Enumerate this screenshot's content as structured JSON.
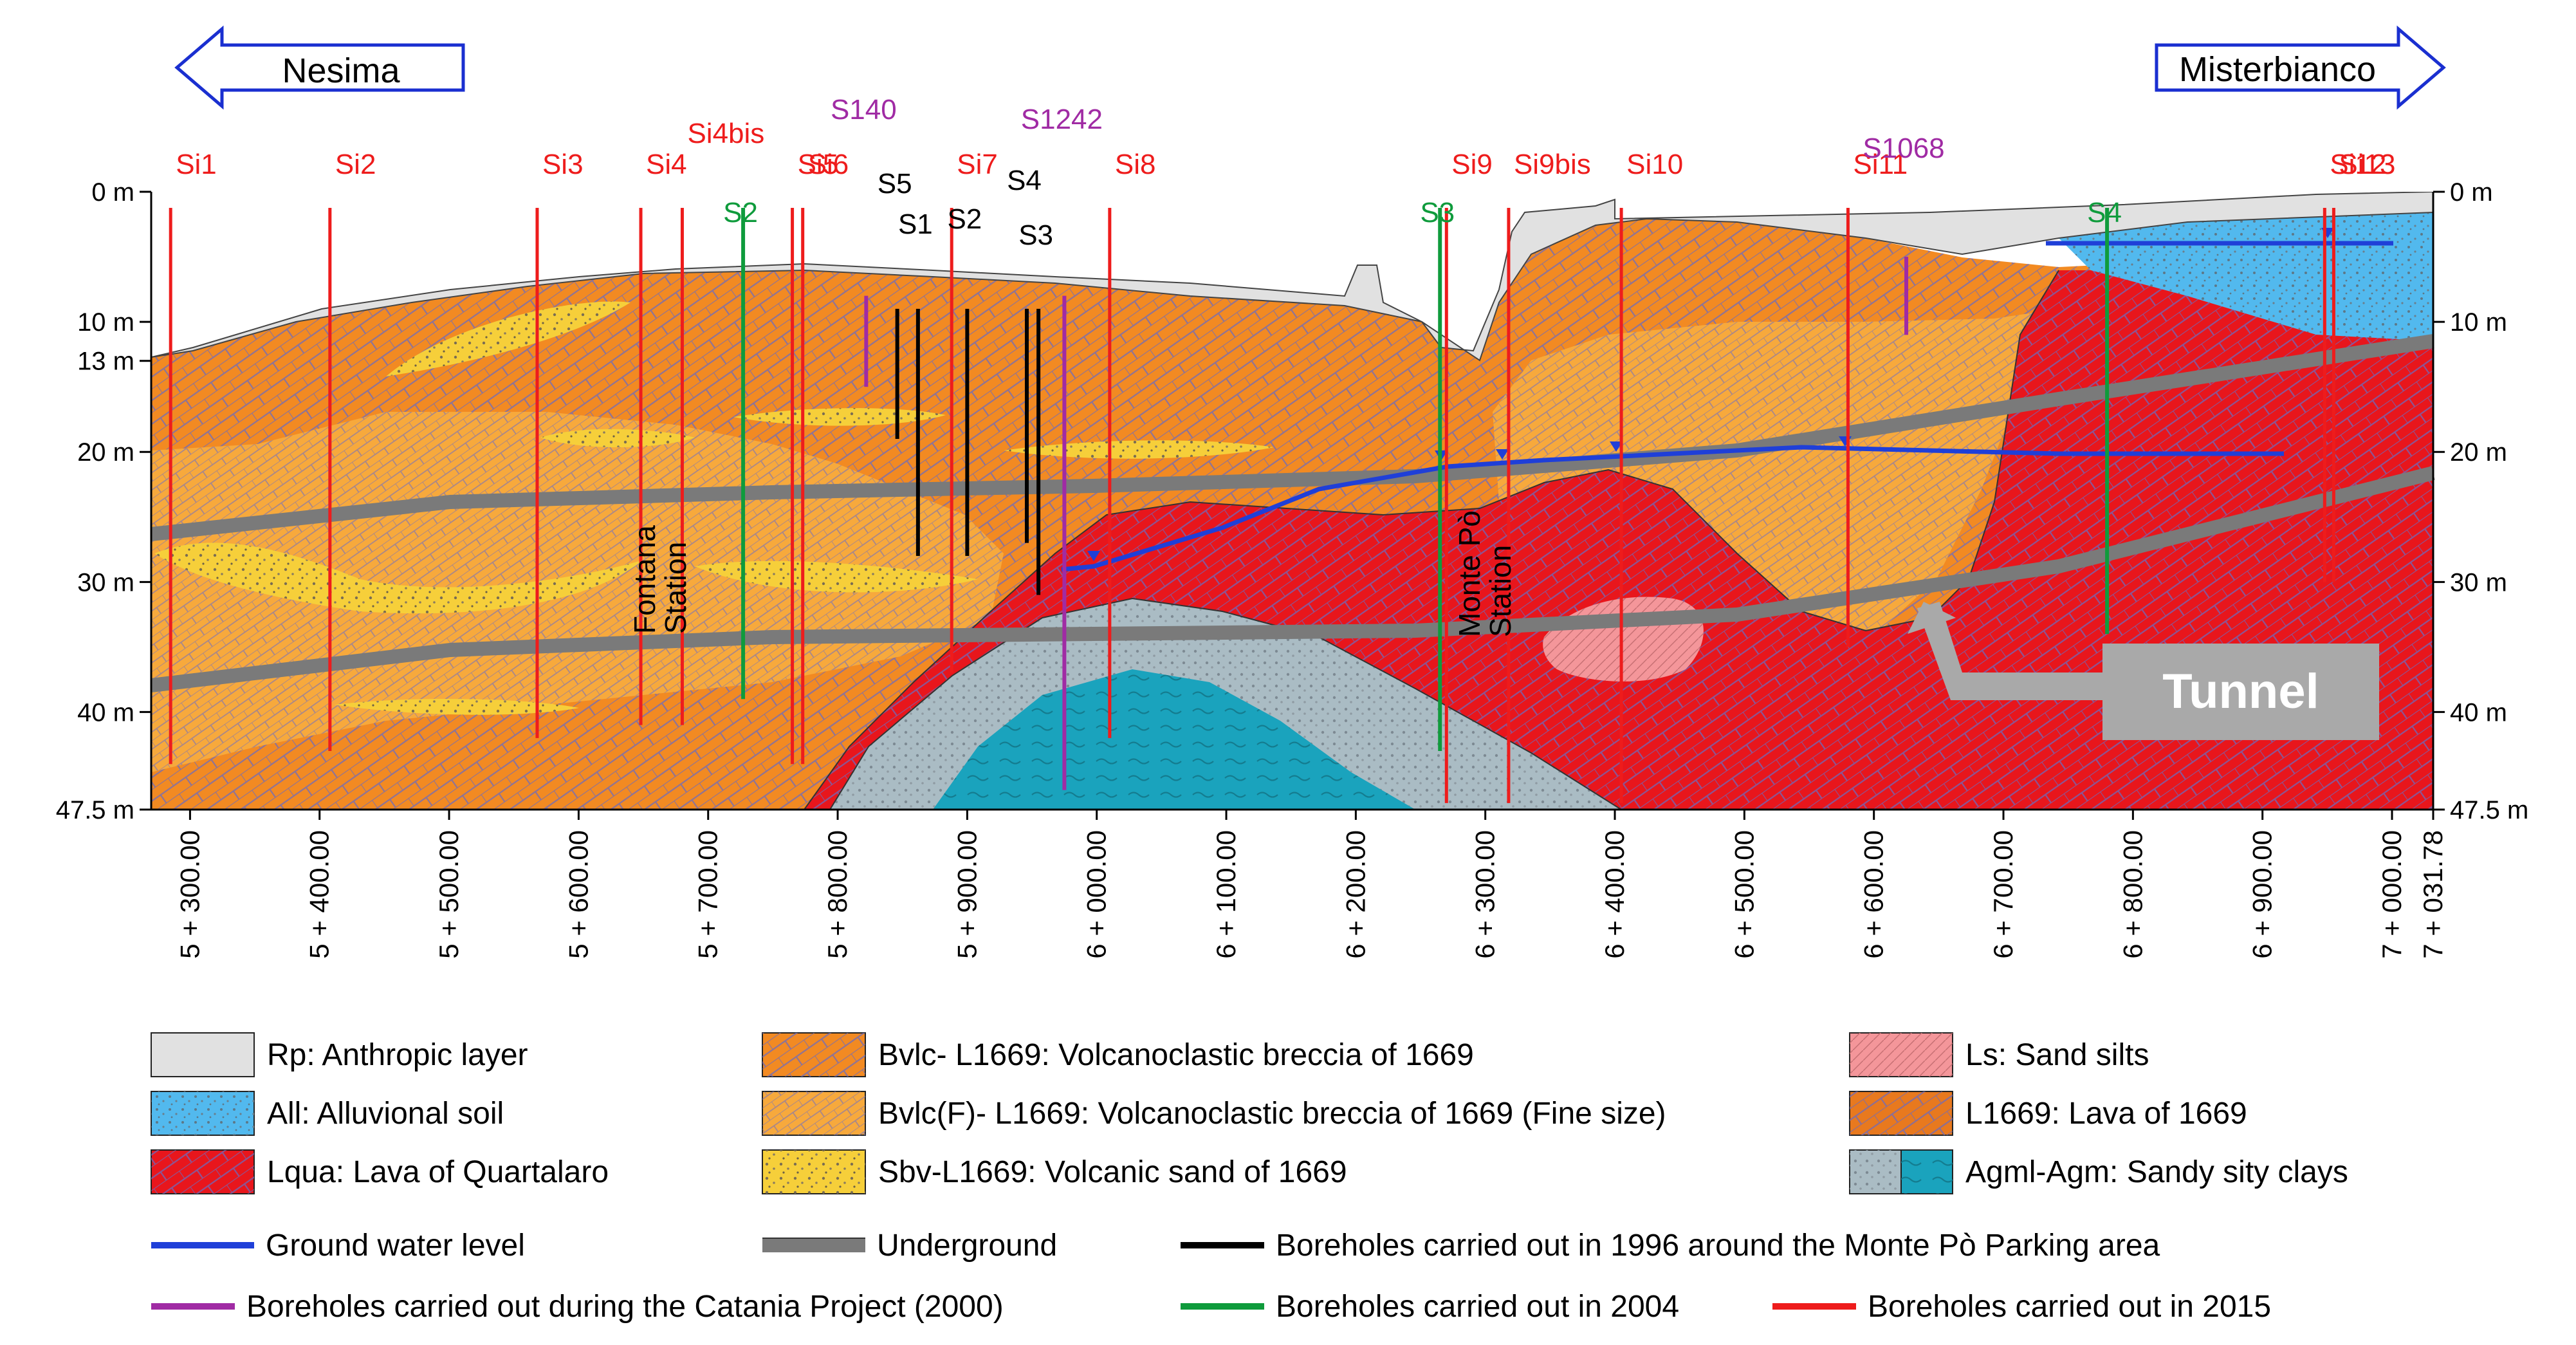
{
  "directions": {
    "left": "Nesima",
    "right": "Misterbianco"
  },
  "depth_ticks": [
    {
      "label": "0 m",
      "depth": 0,
      "side": "both"
    },
    {
      "label": "10 m",
      "depth": 10,
      "side": "both"
    },
    {
      "label": "13 m",
      "depth": 13,
      "side": "left"
    },
    {
      "label": "20 m",
      "depth": 20,
      "side": "both"
    },
    {
      "label": "30 m",
      "depth": 30,
      "side": "both"
    },
    {
      "label": "40 m",
      "depth": 40,
      "side": "both"
    },
    {
      "label": "47.5 m",
      "depth": 47.5,
      "side": "both"
    }
  ],
  "chainage_labels": [
    {
      "label": "5 + 300.00",
      "ch": 5300
    },
    {
      "label": "5 + 400.00",
      "ch": 5400
    },
    {
      "label": "5 + 500.00",
      "ch": 5500
    },
    {
      "label": "5 + 600.00",
      "ch": 5600
    },
    {
      "label": "5 + 700.00",
      "ch": 5700
    },
    {
      "label": "5 + 800.00",
      "ch": 5800
    },
    {
      "label": "5 + 900.00",
      "ch": 5900
    },
    {
      "label": "6 + 000.00",
      "ch": 6000
    },
    {
      "label": "6 + 100.00",
      "ch": 6100
    },
    {
      "label": "6 + 200.00",
      "ch": 6200
    },
    {
      "label": "6 + 300.00",
      "ch": 6300
    },
    {
      "label": "6 + 400.00",
      "ch": 6400
    },
    {
      "label": "6 + 500.00",
      "ch": 6500
    },
    {
      "label": "6 + 600.00",
      "ch": 6600
    },
    {
      "label": "6 + 700.00",
      "ch": 6700
    },
    {
      "label": "6 + 800.00",
      "ch": 6800
    },
    {
      "label": "6 + 900.00",
      "ch": 6900
    },
    {
      "label": "7 + 000.00",
      "ch": 7000
    },
    {
      "label": "7 + 031.78",
      "ch": 7031.78
    }
  ],
  "boreholes": [
    {
      "name": "Si1",
      "group": "2015",
      "ch": 5285,
      "depth": 44
    },
    {
      "name": "Si2",
      "group": "2015",
      "ch": 5408,
      "depth": 43
    },
    {
      "name": "Si3",
      "group": "2015",
      "ch": 5568,
      "depth": 42
    },
    {
      "name": "Si4",
      "group": "2015",
      "ch": 5648,
      "depth": 41
    },
    {
      "name": "Si4bis",
      "group": "2015",
      "ch": 5680,
      "depth": 41
    },
    {
      "name": "Si5",
      "group": "2015",
      "ch": 5765,
      "depth": 44
    },
    {
      "name": "Si6",
      "group": "2015",
      "ch": 5773,
      "depth": 44
    },
    {
      "name": "Si7",
      "group": "2015",
      "ch": 5888,
      "depth": 37
    },
    {
      "name": "Si8",
      "group": "2015",
      "ch": 6010,
      "depth": 42
    },
    {
      "name": "Si9",
      "group": "2015",
      "ch": 6270,
      "depth": 47
    },
    {
      "name": "Si9bis",
      "group": "2015",
      "ch": 6318,
      "depth": 47
    },
    {
      "name": "Si10",
      "group": "2015",
      "ch": 6405,
      "depth": 47
    },
    {
      "name": "Si11",
      "group": "2015",
      "ch": 6580,
      "depth": 35
    },
    {
      "name": "Si12",
      "group": "2015",
      "ch": 6948,
      "depth": 30
    },
    {
      "name": "Si13",
      "group": "2015",
      "ch": 6955,
      "depth": 30
    },
    {
      "name": "S140",
      "group": "2000",
      "ch": 5822,
      "depth": 15
    },
    {
      "name": "S1242",
      "group": "2000",
      "ch": 5975,
      "depth": 46
    },
    {
      "name": "S1068",
      "group": "2000",
      "ch": 6625,
      "depth": 11
    },
    {
      "name": "S2",
      "group": "2004",
      "ch": 5727,
      "depth": 39
    },
    {
      "name": "S3",
      "group": "2004",
      "ch": 6265,
      "depth": 43
    },
    {
      "name": "S4",
      "group": "2004",
      "ch": 6780,
      "depth": 34
    },
    {
      "name": "S5",
      "group": "1996",
      "ch": 5846,
      "depth": 19
    },
    {
      "name": "S1",
      "group": "1996",
      "ch": 5862,
      "depth": 28
    },
    {
      "name": "S2",
      "group": "1996",
      "ch": 5900,
      "depth": 28
    },
    {
      "name": "S4",
      "group": "1996",
      "ch": 5946,
      "depth": 27
    },
    {
      "name": "S3",
      "group": "1996",
      "ch": 5955,
      "depth": 31
    }
  ],
  "stations": [
    {
      "name": "Fontana\nStation"
    },
    {
      "name": "Monte Pò\nStation"
    }
  ],
  "tunnel_label": "Tunnel",
  "legend": {
    "units": [
      {
        "code": "Rp",
        "label": "Rp: Anthropic layer",
        "color": "#e1e1e1"
      },
      {
        "code": "All",
        "label": "All: Alluvional soil",
        "color": "#52b9ee"
      },
      {
        "code": "Lqua",
        "label": "Lqua: Lava of Quartalaro",
        "color": "#e8161c"
      },
      {
        "code": "Bvlc",
        "label": "Bvlc- L1669: Volcanoclastic breccia of 1669",
        "color": "#f28a22"
      },
      {
        "code": "BvlcF",
        "label": "Bvlc(F)- L1669: Volcanoclastic breccia of 1669 (Fine size)",
        "color": "#f7a93c"
      },
      {
        "code": "Sbv",
        "label": "Sbv-L1669: Volcanic sand of 1669",
        "color": "#f6cf3a"
      },
      {
        "code": "Ls",
        "label": "Ls: Sand silts",
        "color": "#f4969a"
      },
      {
        "code": "L1669",
        "label": "L1669: Lava of 1669",
        "color": "#e8791e"
      },
      {
        "code": "Agml",
        "label": "Agml-Agm: Sandy sity clays",
        "color": "#1aa3bd"
      }
    ],
    "lines": [
      {
        "label": "Ground water level",
        "color": "#1f3fd8"
      },
      {
        "label": "Underground",
        "color": "#7a7a7a"
      },
      {
        "label": "Boreholes carried out in 1996 around the Monte Pò Parking area",
        "color": "#000000"
      },
      {
        "label": "Boreholes carried out during the Catania Project (2000)",
        "color": "#a02ba4"
      },
      {
        "label": "Boreholes carried out in 2004",
        "color": "#0f9b3c"
      },
      {
        "label": "Boreholes carried out in 2015",
        "color": "#ee1c1c"
      }
    ]
  }
}
